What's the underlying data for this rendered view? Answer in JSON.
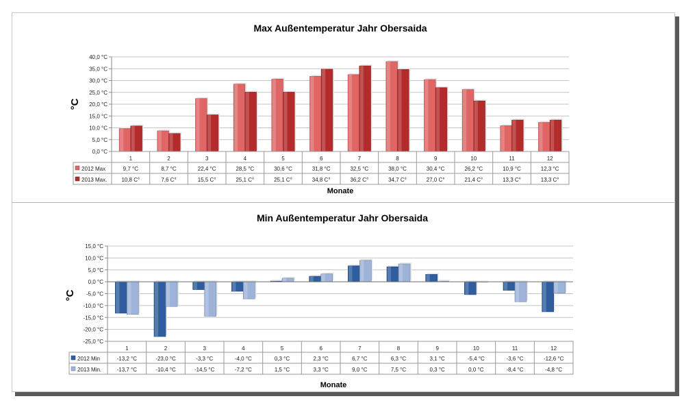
{
  "chart_data": [
    {
      "type": "bar",
      "title": "Max Außentemperatur Jahr Obersaida",
      "xlabel": "Monate",
      "ylabel": "°C",
      "ylim": [
        0,
        40
      ],
      "yticks": [
        "0,0 °C",
        "5,0 °C",
        "10,0 °C",
        "15,0 °C",
        "20,0 °C",
        "25,0 °C",
        "30,0 °C",
        "35,0 °C",
        "40,0 °C"
      ],
      "categories": [
        "1",
        "2",
        "3",
        "4",
        "5",
        "6",
        "7",
        "8",
        "9",
        "10",
        "11",
        "12"
      ],
      "grid": true,
      "legend": "data-table",
      "series": [
        {
          "name": "2012 Max",
          "color": "#e06666",
          "values": [
            9.7,
            8.7,
            22.4,
            28.5,
            30.6,
            31.8,
            32.5,
            38.0,
            30.4,
            26.2,
            10.9,
            12.3
          ],
          "labels": [
            "9,7 °C",
            "8,7 °C",
            "22,4 °C",
            "28,5 °C",
            "30,6 °C",
            "31,8 °C",
            "32,5 °C",
            "38,0 °C",
            "30,4 °C",
            "26,2 °C",
            "10,9 °C",
            "12,3 °C"
          ]
        },
        {
          "name": "2013 Max.",
          "color": "#b42b2b",
          "values": [
            10.8,
            7.6,
            15.5,
            25.1,
            25.1,
            34.8,
            36.2,
            34.7,
            27.0,
            21.4,
            13.3,
            13.3
          ],
          "labels": [
            "10,8 C°",
            "7,6 C°",
            "15,5 C°",
            "25,1 C°",
            "25,1 C°",
            "34,8 C°",
            "36,2 C°",
            "34,7 C°",
            "27,0 C°",
            "21,4 C°",
            "13,3 C°",
            "13,3 C°"
          ]
        }
      ]
    },
    {
      "type": "bar",
      "title": "Min  Außentemperatur Jahr Obersaida",
      "xlabel": "Monate",
      "ylabel": "°C",
      "ylim": [
        -25,
        15
      ],
      "yticks": [
        "-25,0 °C",
        "-20,0 °C",
        "-15,0 °C",
        "-10,0 °C",
        "-5,0 °C",
        "0,0 °C",
        "5,0 °C",
        "10,0 °C",
        "15,0 °C"
      ],
      "categories": [
        "1",
        "2",
        "3",
        "4",
        "5",
        "6",
        "7",
        "8",
        "9",
        "10",
        "11",
        "12"
      ],
      "grid": true,
      "legend": "data-table",
      "series": [
        {
          "name": "2012 Min",
          "color": "#2f5d9e",
          "values": [
            -13.2,
            -23.0,
            -3.3,
            -4.0,
            0.3,
            2.3,
            6.7,
            6.3,
            3.1,
            -5.4,
            -3.6,
            -12.6
          ],
          "labels": [
            "-13,2 °C",
            "-23,0 °C",
            "-3,3 °C",
            "-4,0 °C",
            "0,3 °C",
            "2,3 °C",
            "6,7 °C",
            "6,3 °C",
            "3,1 °C",
            "-5,4 °C",
            "-3,6 °C",
            "-12,6 °C"
          ]
        },
        {
          "name": "2013 Min.",
          "color": "#9db3d8",
          "values": [
            -13.7,
            -10.4,
            -14.5,
            -7.2,
            1.5,
            3.3,
            9.0,
            7.5,
            0.3,
            0.0,
            -8.4,
            -4.8
          ],
          "labels": [
            "-13,7 °C",
            "-10,4 °C",
            "-14,5 °C",
            "-7,2 °C",
            "1,5 °C",
            "3,3 °C",
            "9,0 °C",
            "7,5 °C",
            "0,3 °C",
            "0,0 °C",
            "-8,4 °C",
            "-4,8 °C"
          ]
        }
      ]
    }
  ]
}
